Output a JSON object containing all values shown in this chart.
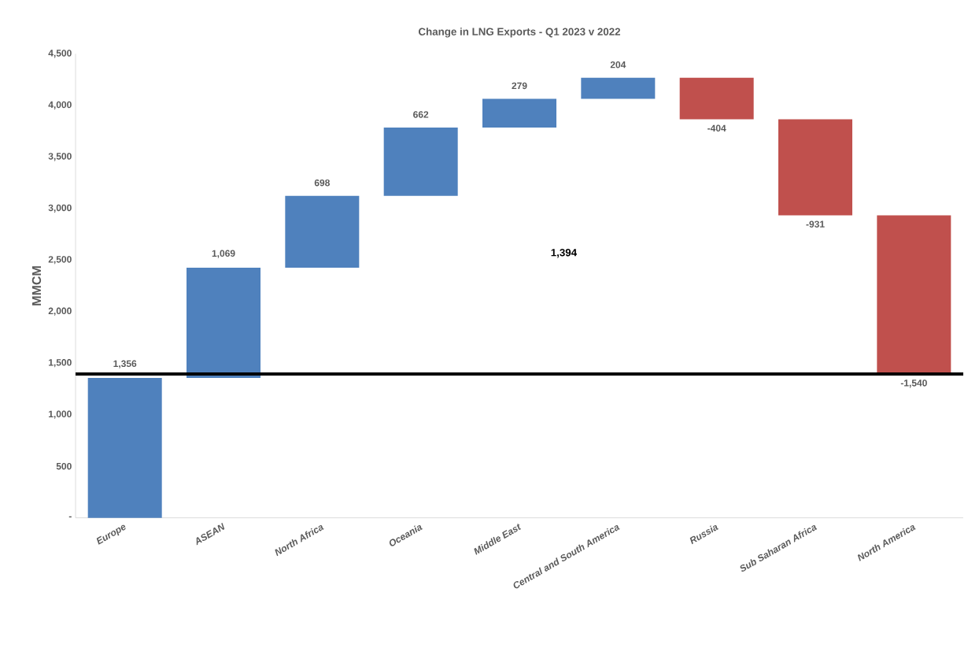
{
  "chart_data": {
    "type": "bar",
    "title": "Change in LNG Exports - Q1 2023 v 2022",
    "ylabel": "MMCM",
    "categories": [
      "Europe",
      "ASEAN",
      "North Africa",
      "Oceania",
      "Middle East",
      "Central and South America",
      "Russia",
      "Sub Saharan Africa",
      "North America"
    ],
    "values": [
      1356,
      1069,
      698,
      662,
      279,
      204,
      -404,
      -931,
      -1540
    ],
    "base": [
      0,
      1356,
      2425,
      3123,
      3785,
      4064,
      4268,
      3864,
      2933
    ],
    "colors": [
      "#4f81bd",
      "#4f81bd",
      "#4f81bd",
      "#4f81bd",
      "#4f81bd",
      "#4f81bd",
      "#c0504d",
      "#c0504d",
      "#c0504d"
    ],
    "value_labels": [
      "1,356",
      "1,069",
      "698",
      "662",
      "279",
      "204",
      "-404",
      "-931",
      "-1,540"
    ],
    "ylim": [
      0,
      4500
    ],
    "yticks": [
      {
        "value": 0,
        "label": "-"
      },
      {
        "value": 500,
        "label": "500"
      },
      {
        "value": 1000,
        "label": "1,000"
      },
      {
        "value": 1500,
        "label": "1,500"
      },
      {
        "value": 2000,
        "label": "2,000"
      },
      {
        "value": 2500,
        "label": "2,500"
      },
      {
        "value": 3000,
        "label": "3,000"
      },
      {
        "value": 3500,
        "label": "3,500"
      },
      {
        "value": 4000,
        "label": "4,000"
      },
      {
        "value": 4500,
        "label": "4,500"
      }
    ],
    "ref_lines": [
      {
        "axis": "y",
        "value": 1394,
        "label": "1,394",
        "color": "#000000"
      }
    ]
  }
}
